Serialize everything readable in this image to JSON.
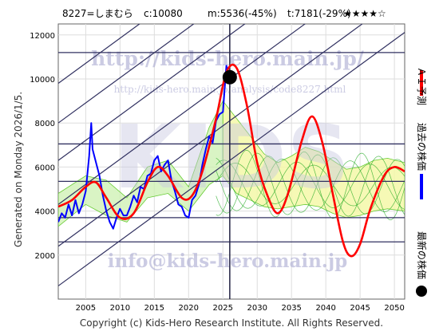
{
  "header": {
    "ticker": "8227=しまむら",
    "current": "c:10080",
    "mean": "m:5536(-45%)",
    "target": "t:7181(-29%)",
    "rating": "★★★★☆"
  },
  "side_left": "Generated on Monday 2026/1/5.",
  "footer": "Copyright (c) Kids-Hero Research Institute. All Rights Reserved.",
  "watermark": {
    "url_top": "http://kids-hero.main.jp/",
    "url_mid": "http://kids-hero.main.jp/analysis/code8227.html",
    "logo": "KIDS",
    "email": "info@kids-hero.main.jp"
  },
  "legend": [
    {
      "label": "ＡＩ予測",
      "color": "#ff0000"
    },
    {
      "label": "過去の株価",
      "color": "#0000ff"
    },
    {
      "label": "最新の株価",
      "color": "#000000"
    }
  ],
  "chart_data": {
    "type": "line",
    "x_ticks": [
      2005,
      2010,
      2015,
      2020,
      2025,
      2030,
      2035,
      2040,
      2045,
      2050
    ],
    "y_ticks": [
      2000,
      4000,
      6000,
      8000,
      10000,
      12000
    ],
    "xlim": [
      2001,
      2051.5
    ],
    "ylim": [
      0,
      12500
    ],
    "horizontal_levels": [
      2600,
      3700,
      5350,
      7050,
      11200
    ],
    "current_point": {
      "x": 2026.0,
      "y": 10080
    },
    "history": [
      [
        2001.0,
        3500
      ],
      [
        2001.5,
        3900
      ],
      [
        2002.0,
        3700
      ],
      [
        2002.5,
        4300
      ],
      [
        2003.0,
        3800
      ],
      [
        2003.5,
        4500
      ],
      [
        2004.0,
        3900
      ],
      [
        2004.5,
        4300
      ],
      [
        2005.0,
        4900
      ],
      [
        2005.5,
        6500
      ],
      [
        2005.8,
        8000
      ],
      [
        2006.0,
        6800
      ],
      [
        2006.5,
        6200
      ],
      [
        2007.0,
        5600
      ],
      [
        2007.5,
        4700
      ],
      [
        2008.0,
        4000
      ],
      [
        2008.5,
        3500
      ],
      [
        2009.0,
        3200
      ],
      [
        2009.5,
        3700
      ],
      [
        2010.0,
        4100
      ],
      [
        2010.5,
        3800
      ],
      [
        2011.0,
        3800
      ],
      [
        2011.5,
        4200
      ],
      [
        2012.0,
        4700
      ],
      [
        2012.5,
        4400
      ],
      [
        2013.0,
        5100
      ],
      [
        2013.5,
        5000
      ],
      [
        2014.0,
        5600
      ],
      [
        2014.5,
        5700
      ],
      [
        2015.0,
        6300
      ],
      [
        2015.5,
        6500
      ],
      [
        2016.0,
        5800
      ],
      [
        2016.5,
        6100
      ],
      [
        2017.0,
        6300
      ],
      [
        2017.5,
        5400
      ],
      [
        2018.0,
        4900
      ],
      [
        2018.5,
        4300
      ],
      [
        2019.0,
        4200
      ],
      [
        2019.5,
        3800
      ],
      [
        2020.0,
        3700
      ],
      [
        2020.5,
        4500
      ],
      [
        2021.0,
        4700
      ],
      [
        2021.5,
        5200
      ],
      [
        2022.0,
        6100
      ],
      [
        2022.5,
        6800
      ],
      [
        2023.0,
        7400
      ],
      [
        2023.5,
        7100
      ],
      [
        2024.0,
        8100
      ],
      [
        2024.5,
        8400
      ],
      [
        2025.0,
        8500
      ],
      [
        2025.5,
        10600
      ],
      [
        2026.0,
        10080
      ]
    ],
    "ai_forecast": [
      [
        2001.0,
        4200
      ],
      [
        2003.0,
        4500
      ],
      [
        2005.0,
        5100
      ],
      [
        2006.5,
        5300
      ],
      [
        2008.0,
        4600
      ],
      [
        2010.0,
        3700
      ],
      [
        2012.0,
        3900
      ],
      [
        2014.0,
        5300
      ],
      [
        2015.5,
        6000
      ],
      [
        2017.0,
        5600
      ],
      [
        2019.0,
        4600
      ],
      [
        2020.5,
        4700
      ],
      [
        2022.0,
        5800
      ],
      [
        2024.0,
        8200
      ],
      [
        2025.5,
        10300
      ],
      [
        2027.0,
        10500
      ],
      [
        2028.5,
        8800
      ],
      [
        2030.0,
        6200
      ],
      [
        2031.5,
        4700
      ],
      [
        2033.0,
        3900
      ],
      [
        2034.5,
        4800
      ],
      [
        2036.5,
        7200
      ],
      [
        2038.0,
        8300
      ],
      [
        2039.5,
        7100
      ],
      [
        2041.0,
        4800
      ],
      [
        2042.5,
        2600
      ],
      [
        2043.7,
        1950
      ],
      [
        2045.0,
        2500
      ],
      [
        2046.5,
        4100
      ],
      [
        2048.5,
        5600
      ],
      [
        2050.0,
        6000
      ],
      [
        2051.5,
        5800
      ]
    ],
    "forecast_band": [
      [
        2025.0,
        9000,
        5600
      ],
      [
        2027.0,
        8200,
        4800
      ],
      [
        2029.0,
        7400,
        4500
      ],
      [
        2031.0,
        6600,
        4200
      ],
      [
        2033.0,
        6200,
        4100
      ],
      [
        2035.0,
        6500,
        4200
      ],
      [
        2037.0,
        6900,
        4300
      ],
      [
        2039.0,
        6700,
        4200
      ],
      [
        2041.0,
        6300,
        3900
      ],
      [
        2043.0,
        5900,
        3700
      ],
      [
        2045.0,
        6000,
        3800
      ],
      [
        2047.0,
        6300,
        4000
      ],
      [
        2049.0,
        6400,
        4100
      ],
      [
        2051.5,
        6200,
        4000
      ]
    ],
    "history_band": [
      [
        2001.0,
        4800,
        3300
      ],
      [
        2005.0,
        5600,
        4300
      ],
      [
        2008.0,
        5400,
        3800
      ],
      [
        2011.0,
        4600,
        3500
      ],
      [
        2014.0,
        6000,
        4600
      ],
      [
        2017.0,
        6300,
        4800
      ],
      [
        2020.0,
        5100,
        4000
      ],
      [
        2023.0,
        7800,
        5200
      ],
      [
        2025.0,
        9000,
        5600
      ]
    ],
    "trend_lines": [
      {
        "slope": 228,
        "intercept_2001": 4300
      },
      {
        "slope": 228,
        "intercept_2001": 2400
      },
      {
        "slope": 228,
        "intercept_2001": 600
      },
      {
        "slope": 228,
        "intercept_2001": 6300
      },
      {
        "slope": 228,
        "intercept_2001": 8000
      },
      {
        "slope": 228,
        "intercept_2001": 9800
      }
    ],
    "grid": true
  }
}
